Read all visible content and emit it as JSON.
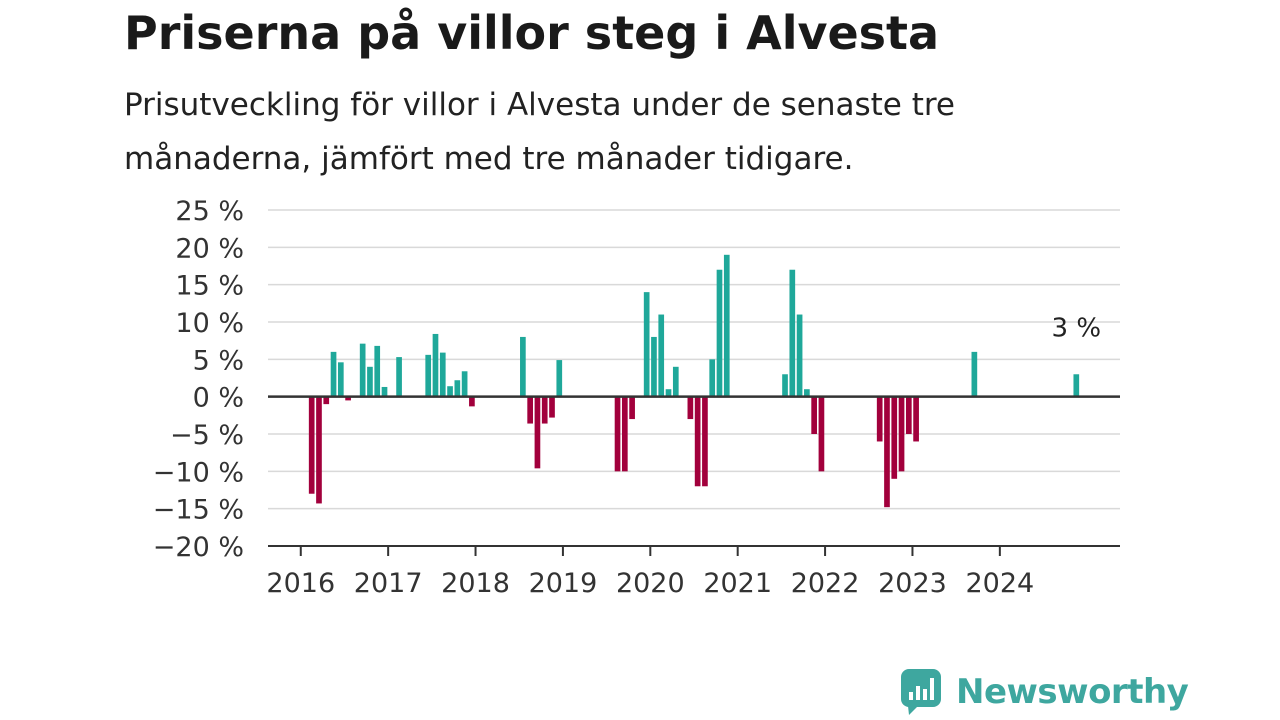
{
  "title": "Priserna på villor steg i Alvesta",
  "subtitle": "Prisutveckling för villor i Alvesta under de senaste tre månaderna, jämfört med tre månader tidigare.",
  "brand": {
    "name": "Newsworthy"
  },
  "colors": {
    "positive": "#1fa89a",
    "negative": "#a2003c",
    "grid": "#d9d9d9",
    "zero_line": "#333333",
    "brand": "#3ea79f"
  },
  "chart_data": {
    "type": "bar",
    "title": "Priserna på villor steg i Alvesta",
    "subtitle": "Prisutveckling för villor i Alvesta under de senaste tre månaderna, jämfört med tre månader tidigare.",
    "xlabel": "",
    "ylabel": "",
    "ylim": [
      -20,
      25
    ],
    "yticks": [
      25,
      20,
      15,
      10,
      5,
      0,
      -5,
      -10,
      -15,
      -20
    ],
    "ytick_labels": [
      "25 %",
      "20 %",
      "15 %",
      "10 %",
      "5 %",
      "0 %",
      "−5 %",
      "−10 %",
      "−15 %",
      "−20 %"
    ],
    "x_tick_labels": [
      "2016",
      "2017",
      "2018",
      "2019",
      "2020",
      "2021",
      "2022",
      "2023",
      "2024"
    ],
    "x_range": [
      "2015-08",
      "2025-05"
    ],
    "grid": true,
    "annotation": {
      "text": "3 %",
      "x": "2024-11"
    },
    "x": [
      "2016-02",
      "2016-03",
      "2016-04",
      "2016-05",
      "2016-06",
      "2016-07",
      "2016-09",
      "2016-10",
      "2016-11",
      "2016-12",
      "2017-02",
      "2017-06",
      "2017-07",
      "2017-08",
      "2017-09",
      "2017-10",
      "2017-11",
      "2017-12",
      "2018-07",
      "2018-08",
      "2018-09",
      "2018-10",
      "2018-11",
      "2018-12",
      "2019-08",
      "2019-09",
      "2019-10",
      "2019-12",
      "2020-01",
      "2020-02",
      "2020-03",
      "2020-04",
      "2020-06",
      "2020-07",
      "2020-08",
      "2020-09",
      "2020-10",
      "2020-11",
      "2021-07",
      "2021-08",
      "2021-09",
      "2021-10",
      "2021-11",
      "2021-12",
      "2022-08",
      "2022-09",
      "2022-10",
      "2022-11",
      "2022-12",
      "2023-01",
      "2023-09",
      "2024-11"
    ],
    "values": [
      -13,
      -14.3,
      -1,
      6,
      4.6,
      -0.5,
      7.1,
      4,
      6.8,
      1.3,
      5.3,
      5.6,
      8.4,
      5.9,
      1.4,
      2.2,
      3.4,
      -1.3,
      8,
      -3.6,
      -9.6,
      -3.6,
      -2.8,
      4.9,
      -10,
      -10,
      -3,
      14,
      8,
      11,
      1,
      4,
      -3,
      -12,
      -12,
      5,
      17,
      19,
      3,
      17,
      11,
      1,
      -5,
      -10,
      -6,
      -14.8,
      -11,
      -10,
      -5,
      -6,
      6,
      3
    ]
  }
}
